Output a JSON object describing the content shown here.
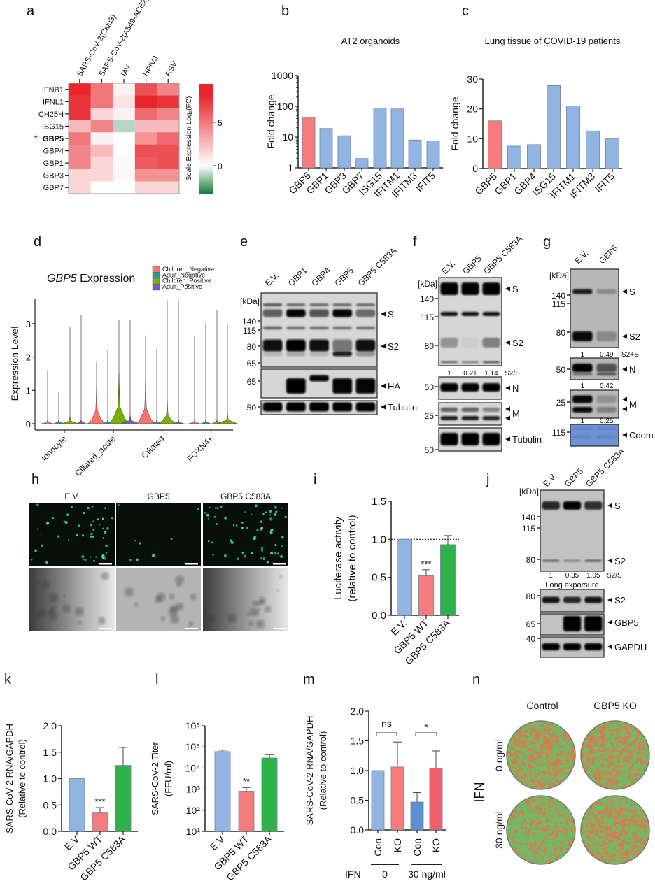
{
  "panel_labels": {
    "a": "a",
    "b": "b",
    "c": "c",
    "d": "d",
    "e": "e",
    "f": "f",
    "g": "g",
    "h": "h",
    "i": "i",
    "j": "j",
    "k": "k",
    "l": "l",
    "m": "m",
    "n": "n"
  },
  "chart_data": [
    {
      "id": "a",
      "type": "heatmap",
      "columns": [
        "SARS-CoV-2(Calu3)",
        "SARS-CoV-2(A549-ACE2)",
        "IAV",
        "HPIV3",
        "RSV"
      ],
      "rows": [
        "IFNB1",
        "IFNL1",
        "CH25H",
        "ISG15",
        "GBP5",
        "GBP4",
        "GBP1",
        "GBP3",
        "GBP7"
      ],
      "highlighted_row": "GBP5",
      "highlight_mark": "*",
      "values": [
        [
          8.0,
          5.0,
          0.5,
          6.5,
          4.5
        ],
        [
          7.5,
          5.0,
          1.0,
          8.0,
          7.5
        ],
        [
          7.5,
          1.5,
          0.5,
          5.5,
          4.5
        ],
        [
          2.5,
          4.5,
          -1.0,
          2.5,
          2.5
        ],
        [
          5.0,
          0.5,
          0.0,
          4.0,
          5.5
        ],
        [
          4.5,
          2.5,
          0.0,
          6.5,
          6.5
        ],
        [
          4.5,
          1.5,
          -0.1,
          6.0,
          6.5
        ],
        [
          1.5,
          1.5,
          0.3,
          4.0,
          4.0
        ],
        [
          1.5,
          0.0,
          0.0,
          1.5,
          1.5
        ]
      ],
      "colorbar": {
        "label": "Scale Expression Log₂(FC)",
        "ticks": [
          5,
          0
        ],
        "tick_labels": [
          "5",
          "0"
        ],
        "range": [
          -3.2,
          9.4
        ],
        "high_color": "#e8262c",
        "mid_color": "#ffffff",
        "low_color": "#1a7a3c"
      }
    },
    {
      "id": "b",
      "type": "bar",
      "title": "AT2 organoids",
      "ylabel": [
        "Fold change"
      ],
      "yscale": "log",
      "ylim": [
        1,
        1000
      ],
      "yticks": [
        1,
        10,
        100,
        1000
      ],
      "ytick_labels": [
        "1",
        "10",
        "100",
        "1000"
      ],
      "categories": [
        "GBP5",
        "GBP1",
        "GBP3",
        "GBP7",
        "ISG15",
        "IFITM1",
        "IFITM3",
        "IFIT5"
      ],
      "values": [
        44,
        19,
        11,
        2,
        88,
        82,
        8,
        7.5
      ],
      "colors": [
        "#f47c7c",
        "#92b4e3",
        "#92b4e3",
        "#92b4e3",
        "#92b4e3",
        "#92b4e3",
        "#92b4e3",
        "#92b4e3"
      ]
    },
    {
      "id": "c",
      "type": "bar",
      "title": "Lung tissue of COVID-19 patients",
      "ylabel": [
        "Fold change"
      ],
      "yscale": "linear",
      "ylim": [
        0,
        30
      ],
      "yticks": [
        0,
        10,
        20,
        30
      ],
      "ytick_labels": [
        "0",
        "10",
        "20",
        "30"
      ],
      "categories": [
        "GBP5",
        "GBP1",
        "GBP4",
        "ISG15",
        "IFITM1",
        "IFITM3",
        "IFIT5"
      ],
      "values": [
        16,
        7.5,
        8,
        27.8,
        21,
        12.6,
        10.1
      ],
      "colors": [
        "#f47c7c",
        "#92b4e3",
        "#92b4e3",
        "#92b4e3",
        "#92b4e3",
        "#92b4e3",
        "#92b4e3"
      ]
    },
    {
      "id": "d",
      "type": "violin",
      "title_italic": "GBP5",
      "title": " Expression",
      "ylabel": "Expression Level",
      "yticks": [
        0,
        1,
        2,
        3
      ],
      "ytick_labels": [
        "0",
        "1",
        "2",
        "3"
      ],
      "categories": [
        "Ionocyte",
        "Ciliated_acute",
        "Ciliated",
        "FOXN4+"
      ],
      "legend": [
        {
          "name": "Children_Negative",
          "color": "#f8766d"
        },
        {
          "name": "Adult_Negative",
          "color": "#1f9e9a"
        },
        {
          "name": "Children_Positive",
          "color": "#7cae00"
        },
        {
          "name": "Adult_Positive",
          "color": "#6c5fc7"
        }
      ],
      "max_values": [
        [
          1.6,
          0.95,
          2.9,
          3.25
        ],
        [
          1.85,
          2.2,
          3.1,
          3.1
        ],
        [
          2.65,
          2.25,
          3.7,
          3.7
        ],
        [
          2.65,
          3.05,
          3.4,
          2.95
        ]
      ]
    },
    {
      "id": "i",
      "type": "bar",
      "ylabel": [
        "Luciferase activity",
        "(relative to control)"
      ],
      "yscale": "linear",
      "ylim": [
        0,
        1.5
      ],
      "yticks": [
        0,
        0.5,
        1.0,
        1.5
      ],
      "ytick_labels": [
        "0.0",
        "0.5",
        "1.0",
        "1.5"
      ],
      "reference_line": 1.0,
      "categories": [
        "E.V.",
        "GBP5 WT",
        "GBP5 C583A"
      ],
      "values": [
        1.0,
        0.52,
        0.93
      ],
      "errors_upper": [
        1.0,
        0.6,
        1.05
      ],
      "significance": [
        "",
        "***",
        ""
      ],
      "colors": [
        "#92b4e3",
        "#f47c7c",
        "#2db34a"
      ]
    },
    {
      "id": "k",
      "type": "bar",
      "ylabel": [
        "SARS-CoV-2 RNA/GAPDH",
        "(Relative to control)"
      ],
      "yscale": "linear",
      "ylim": [
        0,
        2.0
      ],
      "yticks": [
        0,
        0.5,
        1.0,
        1.5,
        2.0
      ],
      "ytick_labels": [
        "0.0",
        "0.5",
        "1.0",
        "1.5",
        "2.0"
      ],
      "categories": [
        "E.V",
        "GBP5 WT",
        "GBP5 C583A"
      ],
      "values": [
        1.0,
        0.35,
        1.25
      ],
      "errors_upper": [
        1.0,
        0.45,
        1.59
      ],
      "significance": [
        "",
        "***",
        ""
      ],
      "colors": [
        "#92b4e3",
        "#f47c7c",
        "#2db34a"
      ]
    },
    {
      "id": "l",
      "type": "bar",
      "ylabel": [
        "SARS-CoV-2 Titer",
        "(FFU/ml)"
      ],
      "yscale": "log",
      "ylim": [
        10,
        1000000
      ],
      "yticks": [
        10,
        100,
        1000,
        10000,
        100000,
        1000000
      ],
      "ytick_labels": [
        "10¹",
        "10²",
        "10³",
        "10⁴",
        "10⁵",
        "10⁶"
      ],
      "categories": [
        "E.V",
        "GBP5 WT",
        "GBP5 C583A"
      ],
      "values": [
        60000,
        800,
        30000
      ],
      "errors_upper": [
        70000,
        1200,
        43000
      ],
      "significance": [
        "",
        "**",
        ""
      ],
      "colors": [
        "#92b4e3",
        "#f47c7c",
        "#2db34a"
      ]
    },
    {
      "id": "m",
      "type": "bar",
      "ylabel": [
        "SARS-CoV-2 RNA/GAPDH",
        "(Relative to control)"
      ],
      "yscale": "linear",
      "ylim": [
        0,
        2.0
      ],
      "yticks": [
        0,
        0.5,
        1.0,
        1.5,
        2.0
      ],
      "ytick_labels": [
        "0.0",
        "0.5",
        "1.0",
        "1.5",
        "2.0"
      ],
      "categories": [
        "Con",
        "KO",
        "Con",
        "KO"
      ],
      "values": [
        1.0,
        1.06,
        0.47,
        1.04
      ],
      "errors_upper": [
        1.0,
        1.48,
        0.63,
        1.33
      ],
      "colors": [
        "#92b4e3",
        "#f47c7c",
        "#5b8fd0",
        "#f0606a"
      ],
      "comparisons": [
        {
          "label": "ns"
        },
        {
          "label": "*"
        }
      ],
      "group_title": "IFN",
      "groups": [
        "0",
        "30 ng/ml"
      ]
    }
  ],
  "blots": {
    "e": {
      "lanes": [
        "E.V.",
        "GBP1",
        "GBP4",
        "GBP5",
        "GBP5 C583A"
      ],
      "kda": "[kDa]",
      "markers": [
        [
          "140",
          "115",
          "80",
          "65"
        ],
        [
          "65"
        ],
        [
          "50"
        ]
      ],
      "targets": [
        [
          "S",
          "S2"
        ],
        [
          "HA"
        ],
        [
          "Tubulin"
        ]
      ]
    },
    "f": {
      "lanes": [
        "E.V.",
        "GBP5",
        "GBP5 C583A"
      ],
      "kda": "[kDa]",
      "markers": [
        [
          "140",
          "115",
          "80"
        ],
        [
          "50"
        ],
        [
          "25"
        ],
        [
          "50"
        ]
      ],
      "targets": [
        [
          "S",
          "S2"
        ],
        [
          "N"
        ],
        [
          "M"
        ],
        [
          "Tubulin"
        ]
      ],
      "quant": [
        "1",
        "0.21",
        "1.14"
      ],
      "quant_label": "S2/S"
    },
    "g": {
      "lanes": [
        "E.V.",
        "GBP5"
      ],
      "kda": "[kDa]",
      "markers": [
        [
          "140",
          "115",
          "80"
        ],
        [
          "50"
        ],
        [
          "25"
        ],
        [
          "115"
        ]
      ],
      "targets": [
        [
          "S",
          "S2"
        ],
        [
          "N"
        ],
        [
          "M"
        ],
        [
          "Coom."
        ]
      ],
      "quant": [
        [
          "1",
          "0.49"
        ],
        [
          "1",
          "0.42"
        ],
        [
          "1",
          "0.25"
        ]
      ],
      "quant_label": "S2+S"
    },
    "j": {
      "lanes": [
        "E.V.",
        "GBP5",
        "GBP5 C583A"
      ],
      "kda": "[kDa]",
      "markers": [
        [
          "140",
          "115",
          "80"
        ],
        [
          "80"
        ],
        [
          "65"
        ],
        [
          "40"
        ]
      ],
      "targets": [
        [
          "S",
          "S2"
        ],
        [
          "S2"
        ],
        [
          "GBP5"
        ],
        [
          "GAPDH"
        ]
      ],
      "quant": [
        "1",
        "0.35",
        "1.05"
      ],
      "quant_label": "S2/S",
      "note": "Long exporsure"
    }
  },
  "panel_h": {
    "columns": [
      "E.V.",
      "GBP5",
      "GBP5 C583A"
    ],
    "fluorescence_color": "#3fe0a0"
  },
  "panel_n": {
    "columns": [
      "Control",
      "GBP5 KO"
    ],
    "row_title": "IFN",
    "rows": [
      "0 ng/ml",
      "30 ng/ml"
    ],
    "colors": {
      "live": "#72b866",
      "infected": "#e0774a"
    }
  }
}
